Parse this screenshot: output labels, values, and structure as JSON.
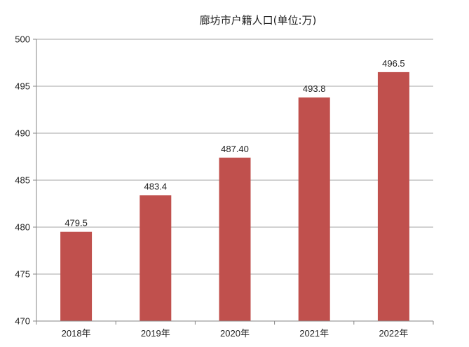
{
  "chart_data": {
    "type": "bar",
    "title": "廊坊市户籍人口(单位:万)",
    "categories": [
      "2018年",
      "2019年",
      "2020年",
      "2021年",
      "2022年"
    ],
    "values": [
      479.5,
      483.4,
      487.4,
      493.8,
      496.5
    ],
    "data_labels": [
      "479.5",
      "483.4",
      "487.40",
      "493.8",
      "496.5"
    ],
    "y_ticks": [
      "470",
      "475",
      "480",
      "485",
      "490",
      "495",
      "500"
    ],
    "ylim": [
      470,
      500
    ],
    "grid": true,
    "legend": "none",
    "colors": {
      "bar": "#c0504d",
      "grid": "#a6a6a6",
      "axis": "#868686"
    }
  }
}
